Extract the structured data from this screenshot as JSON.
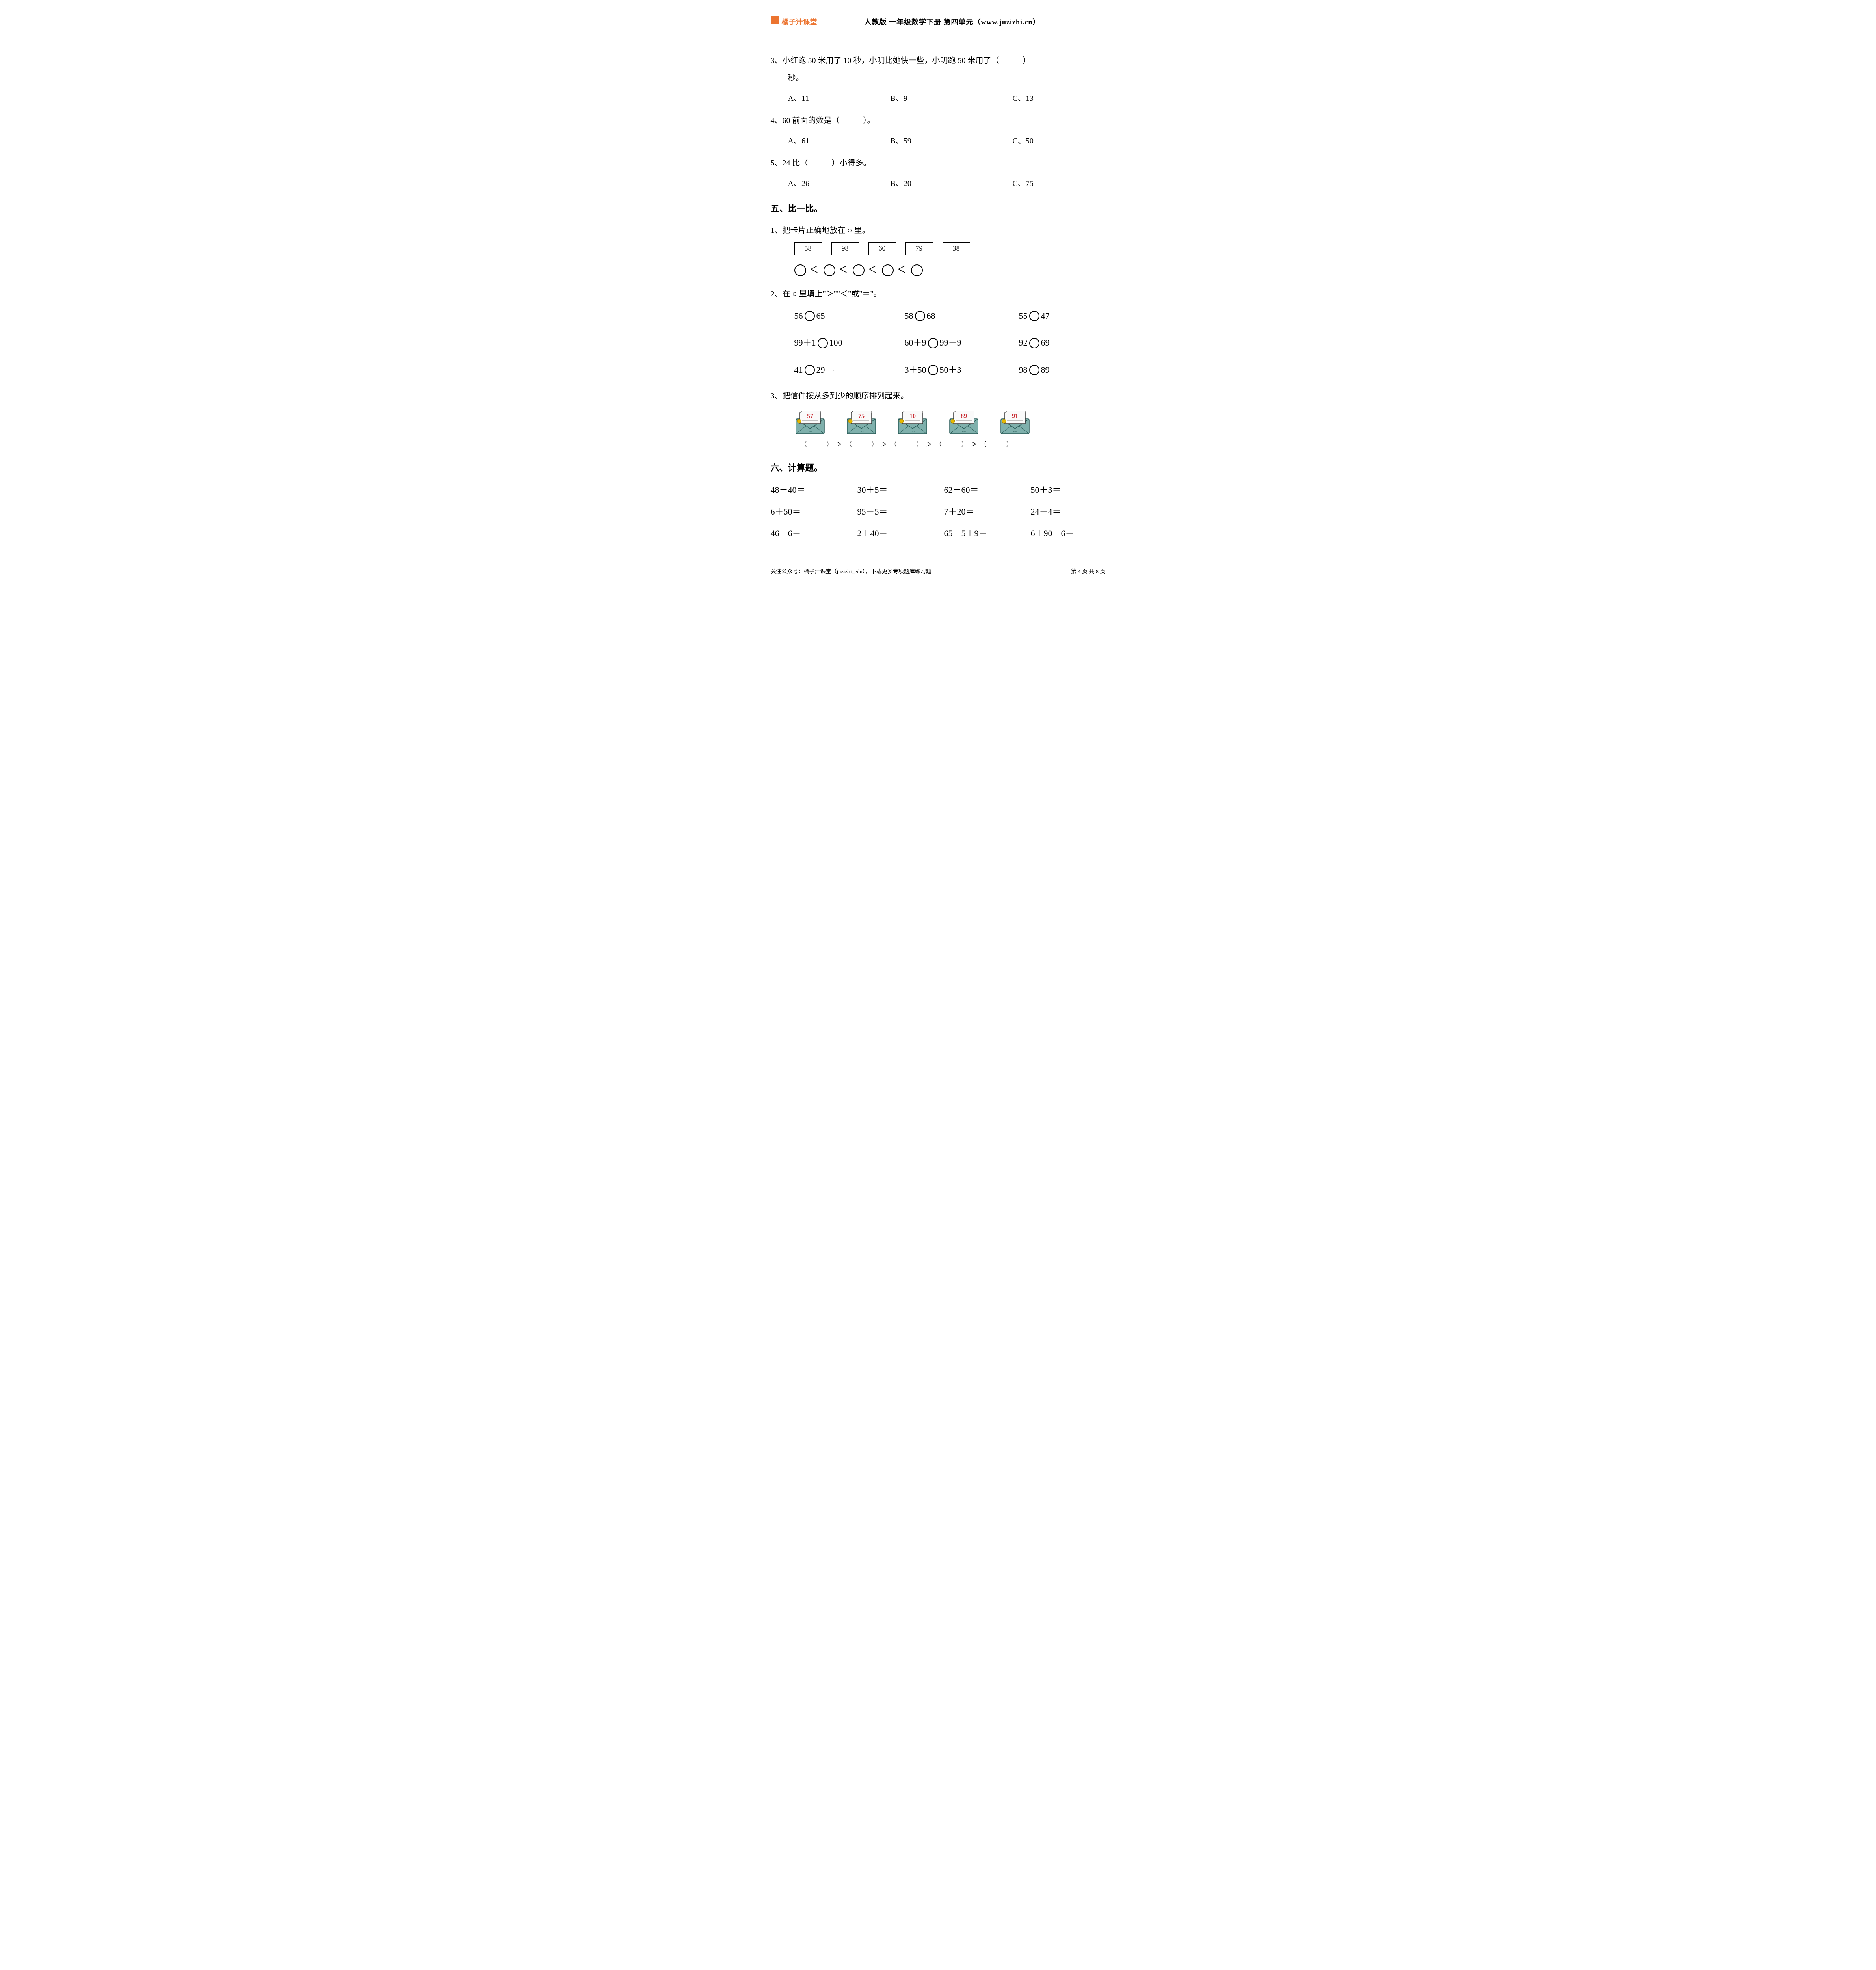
{
  "header": {
    "logo_text": "橘子汁课堂",
    "title": "人教版 一年级数学下册 第四单元（www.juzizhi.cn）",
    "logo_color": "#ec7430"
  },
  "q3": {
    "text": "3、小红跑 50 米用了 10 秒，小明比她快一些，小明跑 50 米用了（　　　）",
    "sub": "秒。",
    "a": "A、11",
    "b": "B、9",
    "c": "C、13"
  },
  "q4": {
    "text": "4、60 前面的数是（　　　）。",
    "a": "A、61",
    "b": "B、59",
    "c": "C、50"
  },
  "q5": {
    "text": "5、24 比（　　　）小得多。",
    "a": "A、26",
    "b": "B、20",
    "c": "C、75"
  },
  "section5": {
    "title": "五、比一比。",
    "sub1": "1、把卡片正确地放在 ○ 里。",
    "cards": [
      "58",
      "98",
      "60",
      "79",
      "38"
    ],
    "sub2": "2、在 ○ 里填上\"＞\"\"＜\"或\"＝\"。",
    "compare": {
      "r1c1_left": "56",
      "r1c1_right": "65",
      "r1c2_left": "58",
      "r1c2_right": "68",
      "r1c3_left": "55",
      "r1c3_right": "47",
      "r2c1_left": "99＋1",
      "r2c1_right": "100",
      "r2c2_left": "60＋9",
      "r2c2_right": "99－9",
      "r2c3_left": "92",
      "r2c3_right": "69",
      "r3c1_left": "41",
      "r3c1_right": "29",
      "r3c2_left": "3＋50",
      "r3c2_right": "50＋3",
      "r3c3_left": "98",
      "r3c3_right": "89"
    },
    "sub3": "3、把信件按从多到少的顺序排列起来。",
    "envelopes": [
      "57",
      "75",
      "10",
      "89",
      "91"
    ],
    "ordering_gt": "＞",
    "paren_l": "（",
    "paren_r": "）",
    "envelope_body_color": "#7fb0ac",
    "envelope_paper_color": "#fafafa",
    "envelope_number_color": "#c8282f",
    "envelope_seal_color": "#e6b800"
  },
  "section6": {
    "title": "六、计算题。",
    "rows": [
      [
        "48－40＝",
        "30＋5＝",
        "62－60＝",
        "50＋3＝"
      ],
      [
        "6＋50＝",
        "95－5＝",
        "7＋20＝",
        "24－4＝"
      ],
      [
        "46－6＝",
        "2＋40＝",
        "65－5＋9＝",
        "6＋90－6＝"
      ]
    ]
  },
  "footer": {
    "left": "关注公众号：橘子汁课堂（juzizhi_edu），下载更多专项题库练习题",
    "right": "第 4 页 共 8 页"
  },
  "lt": "＜"
}
